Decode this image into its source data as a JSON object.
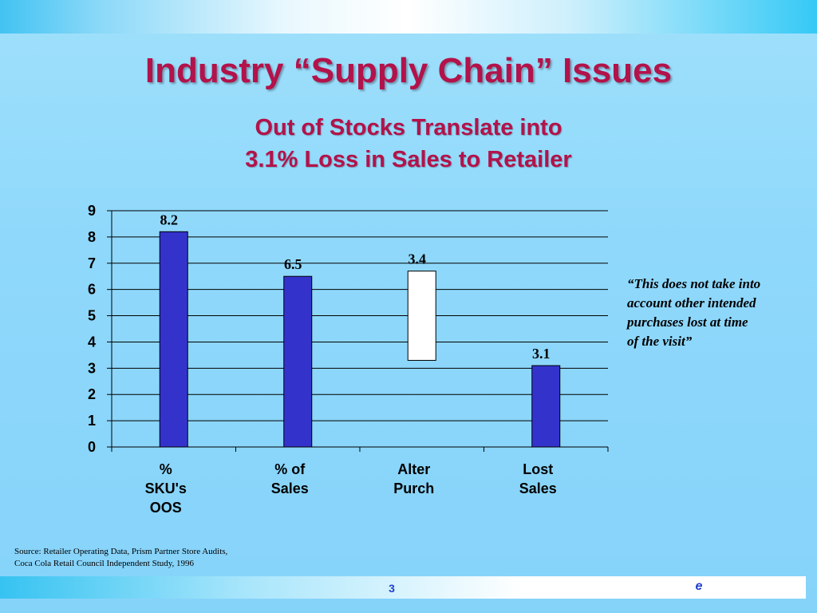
{
  "slide": {
    "title": "Industry “Supply Chain” Issues",
    "page_number": "3",
    "logo_text": "e"
  },
  "note": {
    "lines": [
      "“This does not take into",
      "account other intended",
      "purchases lost at time",
      "of the visit”"
    ]
  },
  "source": {
    "lines": [
      "Source: Retailer Operating Data, Prism Partner Store Audits,",
      "Coca Cola Retail Council  Independent Study, 1996"
    ]
  },
  "chart_data": {
    "type": "bar",
    "title_lines": [
      "Out of Stocks Translate into",
      "3.1% Loss in Sales to Retailer"
    ],
    "xlabel": "",
    "ylabel": "",
    "ylim": [
      0,
      9
    ],
    "yticks": [
      0,
      1,
      2,
      3,
      4,
      5,
      6,
      7,
      8,
      9
    ],
    "grid": true,
    "legend": "none",
    "categories": [
      {
        "lines": [
          "%",
          "SKU's",
          "OOS"
        ]
      },
      {
        "lines": [
          "% of",
          "Sales"
        ]
      },
      {
        "lines": [
          "Alter",
          "Purch"
        ]
      },
      {
        "lines": [
          "Lost",
          "Sales"
        ]
      }
    ],
    "bars": [
      {
        "base": 0,
        "value": 8.2,
        "label": "8.2",
        "color": "#3333cc"
      },
      {
        "base": 0,
        "value": 6.5,
        "label": "6.5",
        "color": "#3333cc"
      },
      {
        "base": 3.3,
        "value": 3.4,
        "label": "3.4",
        "color": "#ffffff"
      },
      {
        "base": 0,
        "value": 3.1,
        "label": "3.1",
        "color": "#3333cc"
      }
    ]
  }
}
